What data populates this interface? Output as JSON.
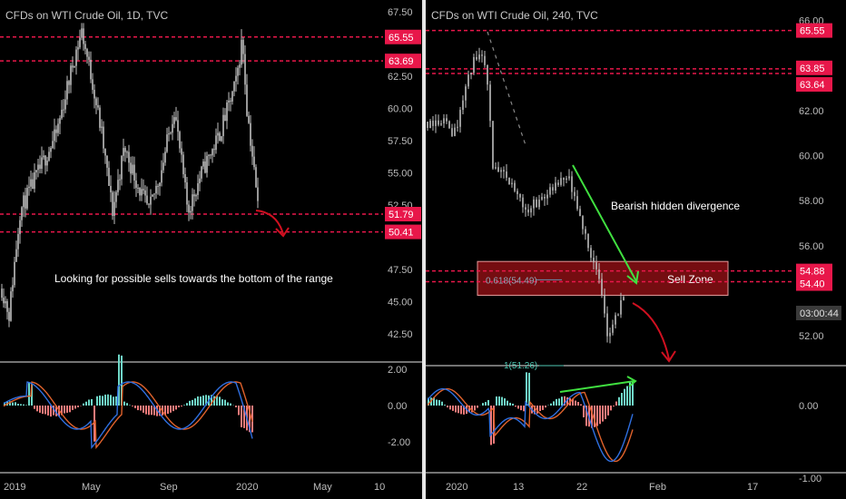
{
  "colors": {
    "background": "#000000",
    "candle": "#bfbfbf",
    "level_line": "#e8174a",
    "level_tag": "#e8174a",
    "axis_text": "#bdbdbd",
    "macd": "#2f6fe0",
    "signal": "#e0622c",
    "hist_pos": "#6fd9c8",
    "hist_neg": "#f07a7a",
    "arrow_red": "#d01020",
    "arrow_green": "#40e040",
    "zone_fill": "#8a0f14",
    "fib_text": "#8fa6b8"
  },
  "left_chart": {
    "title": "CFDs on WTI Crude Oil, 1D, TVC",
    "annotation": "Looking for possible sells towards the bottom of the range"
  },
  "right_chart": {
    "title": "CFDs on WTI Crude Oil, 240, TVC",
    "divergence_label": "Bearish hidden divergence",
    "zone_label": "Sell Zone",
    "fib_618_label": "0.618(54.49)",
    "fib_1_label": "1(51.26)",
    "countdown": "03:00:44"
  },
  "chart_data": [
    {
      "type": "candlestick",
      "title": "CFDs on WTI Crude Oil, 1D, TVC",
      "x_ticks": [
        "2019",
        "May",
        "Sep",
        "2020",
        "May",
        "10"
      ],
      "y_ticks": [
        "67.50",
        "62.50",
        "60.00",
        "57.50",
        "55.00",
        "52.50",
        "47.50",
        "45.00",
        "42.50"
      ],
      "ylim": [
        41.5,
        68
      ],
      "levels": [
        {
          "value": 65.55,
          "label": "65.55"
        },
        {
          "value": 63.69,
          "label": "63.69"
        },
        {
          "value": 51.79,
          "label": "51.79"
        },
        {
          "value": 50.41,
          "label": "50.41"
        }
      ],
      "price_path": [
        [
          0,
          46
        ],
        [
          8,
          44
        ],
        [
          20,
          52
        ],
        [
          40,
          55
        ],
        [
          60,
          58
        ],
        [
          80,
          64
        ],
        [
          88,
          66
        ],
        [
          100,
          62
        ],
        [
          110,
          58
        ],
        [
          122,
          52
        ],
        [
          135,
          57
        ],
        [
          150,
          54
        ],
        [
          162,
          52
        ],
        [
          175,
          55
        ],
        [
          190,
          60
        ],
        [
          205,
          52
        ],
        [
          220,
          55
        ],
        [
          240,
          58
        ],
        [
          258,
          62
        ],
        [
          265,
          65.5
        ],
        [
          270,
          60
        ],
        [
          275,
          57
        ],
        [
          282,
          52.5
        ]
      ],
      "indicator": {
        "name": "MACD",
        "y_ticks": [
          "2.00",
          "0.00",
          "-2.00"
        ],
        "ylim": [
          -3.5,
          2.5
        ]
      }
    },
    {
      "type": "candlestick",
      "title": "CFDs on WTI Crude Oil, 240, TVC",
      "x_ticks": [
        "2020",
        "13",
        "22",
        "Feb",
        "17"
      ],
      "y_ticks": [
        "66.00",
        "62.00",
        "60.00",
        "58.00",
        "56.00",
        "52.00"
      ],
      "ylim": [
        51,
        66.5
      ],
      "levels": [
        {
          "value": 65.55,
          "label": "65.55"
        },
        {
          "value": 63.85,
          "label": "63.85"
        },
        {
          "value": 63.64,
          "label": "63.64"
        },
        {
          "value": 54.88,
          "label": "54.88"
        },
        {
          "value": 54.4,
          "label": "54.40"
        }
      ],
      "sell_zone": [
        53.8,
        55.3
      ],
      "fib_levels": [
        {
          "ratio": "0.618",
          "value": 54.49
        },
        {
          "ratio": "1",
          "value": 51.26
        }
      ],
      "price_path": [
        [
          0,
          61.5
        ],
        [
          15,
          61.6
        ],
        [
          30,
          61
        ],
        [
          45,
          63.5
        ],
        [
          55,
          64.5
        ],
        [
          65,
          64
        ],
        [
          72,
          59.5
        ],
        [
          90,
          58.8
        ],
        [
          110,
          57.6
        ],
        [
          125,
          58.1
        ],
        [
          140,
          58.5
        ],
        [
          155,
          59
        ],
        [
          165,
          57.5
        ],
        [
          178,
          56
        ],
        [
          188,
          54.6
        ],
        [
          198,
          52.2
        ],
        [
          205,
          52.5
        ],
        [
          218,
          54
        ]
      ],
      "indicator": {
        "name": "MACD",
        "y_ticks": [
          "0.00",
          "-1.00"
        ],
        "ylim": [
          -1.3,
          0.45
        ]
      }
    }
  ]
}
